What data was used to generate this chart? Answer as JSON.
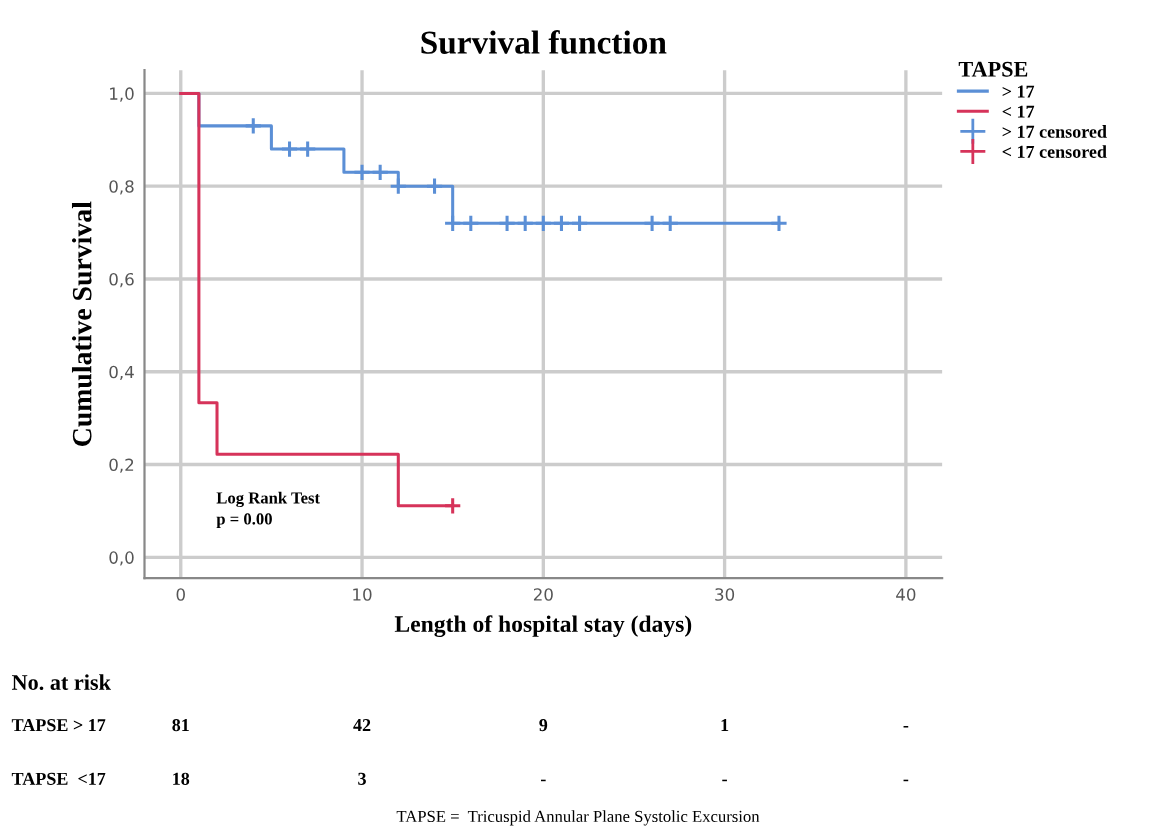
{
  "chart_data": {
    "type": "step",
    "title": "Survival function",
    "xlabel": "Length of hospital stay (days)",
    "ylabel": "Cumulative Survival",
    "legend_title": "TAPSE",
    "series": [
      {
        "name": "> 17",
        "color": "#5b8fd6",
        "x": [
          0,
          1,
          5,
          9,
          12,
          15,
          33
        ],
        "values": [
          1.0,
          0.93,
          0.88,
          0.83,
          0.8,
          0.72,
          0.72
        ]
      },
      {
        "name": "< 17",
        "color": "#d6335a",
        "x": [
          0,
          1,
          2,
          12,
          15
        ],
        "values": [
          1.0,
          0.333,
          0.222,
          0.111,
          0.111
        ]
      },
      {
        "name": "> 17 censored",
        "type": "scatter",
        "marker": "cross",
        "color": "#5b8fd6",
        "x": [
          4,
          6,
          7,
          10,
          11,
          12,
          14,
          15,
          16,
          18,
          19,
          20,
          21,
          22,
          26,
          27,
          33
        ],
        "values": [
          0.93,
          0.88,
          0.88,
          0.83,
          0.83,
          0.8,
          0.8,
          0.72,
          0.72,
          0.72,
          0.72,
          0.72,
          0.72,
          0.72,
          0.72,
          0.72,
          0.72
        ]
      },
      {
        "name": "< 17 censored",
        "type": "scatter",
        "marker": "cross",
        "color": "#d6335a",
        "x": [
          15
        ],
        "values": [
          0.111
        ]
      }
    ],
    "xlim": [
      -2,
      42
    ],
    "xticks": [
      0,
      10,
      20,
      30,
      40
    ],
    "ylim": [
      -0.045,
      1.05
    ],
    "yticks": [
      {
        "value": 0,
        "label": "0,0"
      },
      {
        "value": 0.2,
        "label": "0,2"
      },
      {
        "value": 0.4,
        "label": "0,4"
      },
      {
        "value": 0.6,
        "label": "0,6"
      },
      {
        "value": 0.8,
        "label": "0,8"
      },
      {
        "value": 1.0,
        "label": "1,0"
      }
    ],
    "grid": true,
    "legend": "top right",
    "annotations": [
      "Log Rank Test\np = 0.00",
      "No. at risk",
      "TAPSE > 17",
      "81",
      "42",
      "9",
      "1",
      "-",
      "TAPSE  <17",
      "18",
      "3",
      "-",
      "-",
      "-",
      "TAPSE =  Tricuspid Annular Plane Systolic Excursion"
    ]
  }
}
